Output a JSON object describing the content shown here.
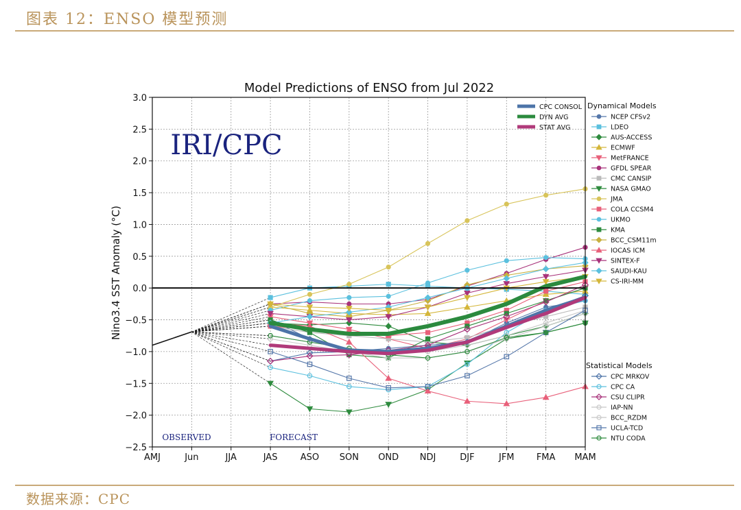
{
  "figure": {
    "title": "图表 12：ENSO 模型预测",
    "source": "数据来源：CPC"
  },
  "chart_data": {
    "type": "line",
    "title": "Model Predictions of ENSO from Jul 2022",
    "ylabel": "Nino3.4 SST Anomaly (°C)",
    "xlabel": "",
    "categories": [
      "AMJ",
      "Jun",
      "JJA",
      "JAS",
      "ASO",
      "SON",
      "OND",
      "NDJ",
      "DJF",
      "JFM",
      "FMA",
      "MAM"
    ],
    "ylim": [
      -2.5,
      3.0
    ],
    "yticks": [
      "3.0",
      "2.5",
      "2.0",
      "1.5",
      "1.0",
      "0.5",
      "0.0",
      "−0.5",
      "−1.0",
      "−1.5",
      "−2.0",
      "−2.5"
    ],
    "watermark": "IRI/CPC",
    "annotations": {
      "observed": "OBSERVED",
      "forecast": "FORECAST"
    },
    "observed": [
      -0.9,
      -0.69
    ],
    "legend_headers": {
      "dynamical": "Dynamical Models",
      "statistical": "Statistical Models"
    },
    "averages": [
      {
        "name": "CPC CONSOL",
        "color": "#4d74a8",
        "values": [
          -0.6,
          -0.8,
          -0.98,
          -1.0,
          -0.95,
          -0.85,
          -0.6,
          -0.35,
          -0.15
        ]
      },
      {
        "name": "DYN AVG",
        "color": "#2b8a3e",
        "values": [
          -0.55,
          -0.65,
          -0.72,
          -0.72,
          -0.6,
          -0.45,
          -0.25,
          0.03,
          0.18
        ]
      },
      {
        "name": "STAT AVG",
        "color": "#b03a7a",
        "values": [
          -0.9,
          -0.95,
          -1.0,
          -1.03,
          -0.98,
          -0.85,
          -0.62,
          -0.4,
          -0.15
        ]
      }
    ],
    "dynamical": [
      {
        "name": "NCEP CFSv2",
        "color": "#5577aa",
        "marker": "circle",
        "values": [
          -0.5,
          -0.8,
          -1.0,
          -0.95,
          -0.9,
          -0.85,
          -0.55,
          -0.3,
          -0.2
        ]
      },
      {
        "name": "LDEO",
        "color": "#5bc0de",
        "marker": "square",
        "values": [
          -0.15,
          0.0,
          0.03,
          0.06,
          0.03,
          0.0,
          -0.02,
          -0.05,
          -0.1
        ]
      },
      {
        "name": "AUS-ACCESS",
        "color": "#2e8b3e",
        "marker": "diamond",
        "values": [
          -0.55,
          -0.58,
          -0.55,
          -0.6,
          -0.85,
          -0.9,
          -0.75,
          -0.6,
          -0.4
        ]
      },
      {
        "name": "ECMWF",
        "color": "#d4b63a",
        "marker": "triangle-up",
        "values": [
          -0.3,
          -0.35,
          -0.4,
          -0.42,
          -0.4,
          -0.3,
          -0.2,
          -0.1,
          -0.05
        ]
      },
      {
        "name": "MetFRANCE",
        "color": "#e8607a",
        "marker": "triangle-down",
        "values": [
          -0.45,
          -0.55,
          -0.65,
          -0.8,
          -0.95,
          -0.8,
          -0.5,
          -0.2,
          0.0
        ]
      },
      {
        "name": "GFDL SPEAR",
        "color": "#a8327a",
        "marker": "circle",
        "values": [
          -0.25,
          -0.22,
          -0.25,
          -0.25,
          -0.18,
          0.03,
          0.23,
          0.45,
          0.64
        ]
      },
      {
        "name": "CMC CANSIP",
        "color": "#bbbbbb",
        "marker": "square",
        "values": [
          -0.6,
          -0.7,
          -0.75,
          -0.8,
          -0.85,
          -0.78,
          -0.6,
          -0.45,
          -0.3
        ]
      },
      {
        "name": "NASA GMAO",
        "color": "#2e8b3e",
        "marker": "triangle-down",
        "values": [
          -1.5,
          -1.9,
          -1.95,
          -1.83,
          -1.6,
          -1.18,
          -0.8,
          -0.7,
          -0.55
        ]
      },
      {
        "name": "JMA",
        "color": "#d8c45a",
        "marker": "circle",
        "values": [
          -0.3,
          -0.1,
          0.06,
          0.33,
          0.7,
          1.06,
          1.32,
          1.46,
          1.56
        ]
      },
      {
        "name": "COLA CCSM4",
        "color": "#e8607a",
        "marker": "square",
        "values": [
          -0.6,
          -0.65,
          -0.7,
          -0.75,
          -0.7,
          -0.55,
          -0.35,
          -0.05,
          0.1
        ]
      },
      {
        "name": "UKMO",
        "color": "#5bc0de",
        "marker": "circle",
        "values": [
          -0.35,
          -0.2,
          -0.15,
          -0.13,
          0.08,
          0.28,
          0.43,
          0.48,
          0.46
        ]
      },
      {
        "name": "KMA",
        "color": "#2e8b3e",
        "marker": "square",
        "values": [
          -0.5,
          -0.7,
          -1.05,
          -1.1,
          -0.8,
          -0.6,
          -0.4,
          -0.2,
          0.0
        ]
      },
      {
        "name": "BCC_CSM11m",
        "color": "#c8b040",
        "marker": "diamond",
        "values": [
          -0.25,
          -0.4,
          -0.45,
          -0.35,
          -0.2,
          0.05,
          0.2,
          0.3,
          0.35
        ]
      },
      {
        "name": "IOCAS ICM",
        "color": "#e8607a",
        "marker": "triangle-up",
        "values": [
          -0.55,
          -0.6,
          -0.85,
          -1.42,
          -1.62,
          -1.78,
          -1.82,
          -1.72,
          -1.55
        ]
      },
      {
        "name": "SINTEX-F",
        "color": "#a8327a",
        "marker": "triangle-down",
        "values": [
          -0.4,
          -0.45,
          -0.5,
          -0.45,
          -0.3,
          -0.08,
          0.07,
          0.18,
          0.28
        ]
      },
      {
        "name": "SAUDI-KAU",
        "color": "#5bc0de",
        "marker": "diamond",
        "values": [
          -0.55,
          -0.45,
          -0.38,
          -0.3,
          -0.15,
          0.0,
          0.15,
          0.3,
          0.4
        ]
      },
      {
        "name": "CS-IRI-MM",
        "color": "#d4b63a",
        "marker": "triangle-down",
        "values": [
          -0.25,
          -0.3,
          -0.32,
          -0.35,
          -0.3,
          -0.15,
          0.0,
          0.1,
          0.18
        ]
      }
    ],
    "statistical": [
      {
        "name": "CPC MRKOV",
        "color": "#4d74a8",
        "marker": "diamond-open",
        "values": [
          -1.15,
          -1.02,
          -1.0,
          -0.98,
          -0.95,
          -0.85,
          -0.6,
          -0.35,
          -0.12
        ]
      },
      {
        "name": "CPC CA",
        "color": "#5bc0de",
        "marker": "triangle-open",
        "values": [
          -1.25,
          -1.38,
          -1.55,
          -1.6,
          -1.55,
          -1.2,
          -0.7,
          -0.35,
          -0.2
        ]
      },
      {
        "name": "CSU CLIPR",
        "color": "#a8327a",
        "marker": "diamond-open",
        "values": [
          -1.15,
          -1.07,
          -1.05,
          -0.98,
          -0.9,
          -0.65,
          -0.45,
          -0.22,
          0.05
        ]
      },
      {
        "name": "IAP-NN",
        "color": "#c8c8c8",
        "marker": "triangle-open",
        "values": [
          -0.8,
          -0.9,
          -1.0,
          -1.1,
          -1.1,
          -1.0,
          -0.8,
          -0.6,
          -0.4
        ]
      },
      {
        "name": "BCC_RZDM",
        "color": "#c8c8c8",
        "marker": "circle-open",
        "values": [
          -0.75,
          -0.85,
          -0.95,
          -1.0,
          -1.0,
          -0.9,
          -0.75,
          -0.55,
          -0.35
        ]
      },
      {
        "name": "UCLA-TCD",
        "color": "#5577aa",
        "marker": "square-open",
        "values": [
          -1.0,
          -1.2,
          -1.42,
          -1.57,
          -1.55,
          -1.38,
          -1.08,
          -0.7,
          -0.35
        ]
      },
      {
        "name": "NTU CODA",
        "color": "#2e8b3e",
        "marker": "triangle-open",
        "values": [
          -0.75,
          -0.85,
          -0.95,
          -1.05,
          -1.1,
          -1.0,
          -0.78,
          -0.7,
          -0.55
        ]
      }
    ]
  }
}
